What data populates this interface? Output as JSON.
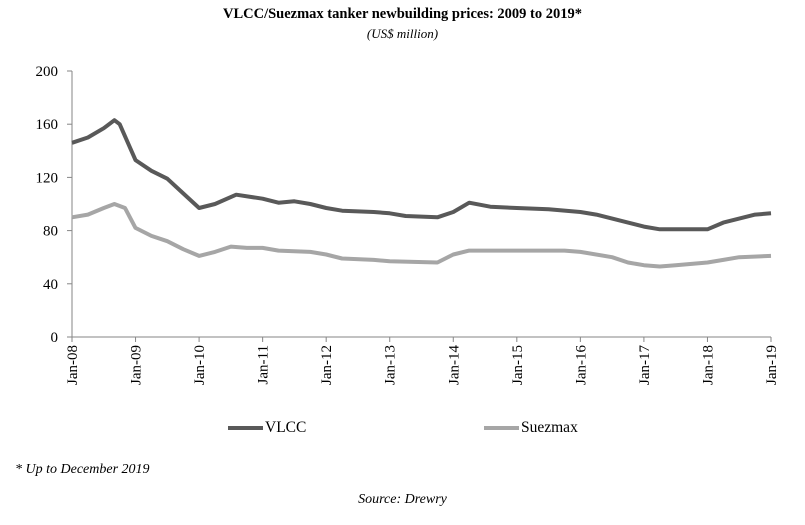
{
  "chart_data": {
    "type": "line",
    "title": "VLCC/Suezmax tanker newbuilding prices: 2009 to 2019*",
    "subtitle": "(US$ million)",
    "xlabel": "",
    "ylabel": "",
    "ylim": [
      0,
      200
    ],
    "yticks": [
      "0",
      "40",
      "80",
      "120",
      "160",
      "200"
    ],
    "xlim": [
      "2008-01",
      "2019-01"
    ],
    "xticks": [
      "Jan-08",
      "Jan-09",
      "Jan-10",
      "Jan-11",
      "Jan-12",
      "Jan-13",
      "Jan-14",
      "Jan-15",
      "Jan-16",
      "Jan-17",
      "Jan-18",
      "Jan-19"
    ],
    "grid": false,
    "legend": "bottom",
    "series": [
      {
        "name": "VLCC",
        "color": "#595959",
        "x": [
          "2008-01",
          "2008-04",
          "2008-07",
          "2008-09",
          "2008-10",
          "2009-01",
          "2009-04",
          "2009-07",
          "2009-10",
          "2010-01",
          "2010-04",
          "2010-08",
          "2011-01",
          "2011-04",
          "2011-07",
          "2011-10",
          "2012-01",
          "2012-04",
          "2012-10",
          "2013-01",
          "2013-04",
          "2013-10",
          "2014-01",
          "2014-04",
          "2014-08",
          "2015-01",
          "2015-07",
          "2016-01",
          "2016-04",
          "2016-10",
          "2017-01",
          "2017-04",
          "2018-01",
          "2018-04",
          "2018-07",
          "2018-10",
          "2019-01"
        ],
        "values": [
          146,
          150,
          157,
          163,
          160,
          133,
          125,
          119,
          108,
          97,
          100,
          107,
          104,
          101,
          102,
          100,
          97,
          95,
          94,
          93,
          91,
          90,
          94,
          101,
          98,
          97,
          96,
          94,
          92,
          86,
          83,
          81,
          81,
          86,
          89,
          92,
          93
        ]
      },
      {
        "name": "Suezmax",
        "color": "#a6a6a6",
        "x": [
          "2008-01",
          "2008-04",
          "2008-07",
          "2008-09",
          "2008-11",
          "2009-01",
          "2009-04",
          "2009-07",
          "2009-10",
          "2010-01",
          "2010-04",
          "2010-07",
          "2010-10",
          "2011-01",
          "2011-04",
          "2011-10",
          "2012-01",
          "2012-04",
          "2012-10",
          "2013-01",
          "2013-10",
          "2014-01",
          "2014-04",
          "2015-01",
          "2015-10",
          "2016-01",
          "2016-07",
          "2016-10",
          "2017-01",
          "2017-04",
          "2017-07",
          "2018-01",
          "2018-04",
          "2018-07",
          "2019-01"
        ],
        "values": [
          90,
          92,
          97,
          100,
          97,
          82,
          76,
          72,
          66,
          61,
          64,
          68,
          67,
          67,
          65,
          64,
          62,
          59,
          58,
          57,
          56,
          62,
          65,
          65,
          65,
          64,
          60,
          56,
          54,
          53,
          54,
          56,
          58,
          60,
          61
        ]
      }
    ]
  },
  "footnote": "* Up to December 2019",
  "source": "Source: Drewry"
}
